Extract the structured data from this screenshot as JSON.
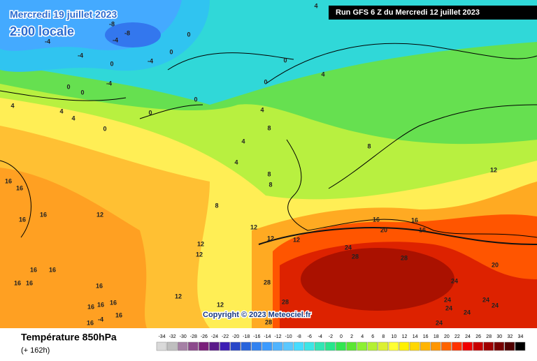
{
  "header": {
    "date": "Mercredi 19 juillet 2023",
    "time": "2:00 locale",
    "run": "Run GFS 6 Z du Mercredi 12 juillet 2023"
  },
  "footer": {
    "title": "Température 850hPa",
    "lead": "(+ 162h)",
    "copyright": "Copyright © 2023 Meteociel.fr"
  },
  "legend": {
    "values": [
      -34,
      -32,
      -30,
      -28,
      -26,
      -24,
      -22,
      -20,
      -18,
      -16,
      -14,
      -12,
      -10,
      -8,
      -6,
      -4,
      -2,
      0,
      2,
      4,
      6,
      8,
      10,
      12,
      14,
      16,
      18,
      20,
      22,
      24,
      26,
      28,
      30,
      32,
      34
    ],
    "colors": [
      "#d9d9d9",
      "#bfbfbf",
      "#a580a5",
      "#8c4a8c",
      "#7a207a",
      "#5a1a8a",
      "#3c1eb4",
      "#2846c8",
      "#2864dc",
      "#3282f0",
      "#3c9bff",
      "#50b4ff",
      "#5ac8ff",
      "#46dcff",
      "#3ce6e6",
      "#32e6b4",
      "#28e68c",
      "#32e650",
      "#5ae632",
      "#8cf032",
      "#b4f032",
      "#dcf032",
      "#ffff32",
      "#fff000",
      "#ffd700",
      "#ffb400",
      "#ff9600",
      "#ff6400",
      "#ff3200",
      "#f00000",
      "#c80000",
      "#a00000",
      "#780000",
      "#500000",
      "#000000"
    ]
  },
  "contour_labels": [
    -8,
    -8,
    -4,
    -4,
    0,
    0,
    -4,
    0,
    -4,
    0,
    4,
    0,
    -4,
    0,
    0,
    4,
    4,
    4,
    0,
    0,
    0,
    4,
    8,
    4,
    4,
    8,
    8,
    8,
    8,
    12,
    16,
    16,
    16,
    16,
    12,
    12,
    12,
    12,
    16,
    16,
    16,
    20,
    24,
    28,
    28,
    20,
    16,
    16,
    16,
    16,
    16,
    12,
    12,
    12,
    12,
    28,
    28,
    24,
    24,
    24,
    24,
    24,
    24,
    24,
    28,
    16,
    16,
    16,
    16,
    16,
    -4,
    4
  ]
}
